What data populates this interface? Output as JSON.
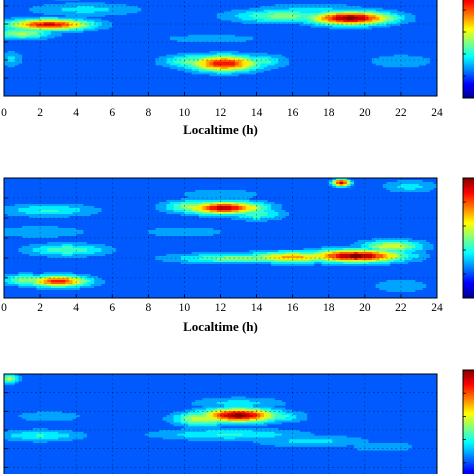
{
  "chart_data": [
    {
      "type": "heatmap",
      "panel": 1,
      "xlabel": "Localtime (h)",
      "xticks": [
        "0",
        "2",
        "4",
        "6",
        "8",
        "10",
        "12",
        "14",
        "16",
        "18",
        "20",
        "22",
        "24"
      ],
      "xlim": [
        0,
        24
      ],
      "ylim": [
        0,
        1
      ],
      "grid": true,
      "colormap": "jet",
      "colorbar": true,
      "hotspots": [
        {
          "x": 19.2,
          "y": 0.72,
          "sx": 2.2,
          "sy": 0.06,
          "v": 1.0
        },
        {
          "x": 21.0,
          "y": 0.72,
          "sx": 1.2,
          "sy": 0.05,
          "v": 0.55
        },
        {
          "x": 15.5,
          "y": 0.74,
          "sx": 2.8,
          "sy": 0.06,
          "v": 0.5
        },
        {
          "x": 17.0,
          "y": 0.8,
          "sx": 3.0,
          "sy": 0.05,
          "v": 0.35
        },
        {
          "x": 2.5,
          "y": 0.66,
          "sx": 2.2,
          "sy": 0.05,
          "v": 0.9
        },
        {
          "x": 1.0,
          "y": 0.58,
          "sx": 1.6,
          "sy": 0.05,
          "v": 0.55
        },
        {
          "x": 4.5,
          "y": 0.8,
          "sx": 3.0,
          "sy": 0.06,
          "v": 0.35
        },
        {
          "x": 3.5,
          "y": 0.97,
          "sx": 2.5,
          "sy": 0.06,
          "v": 0.5
        },
        {
          "x": 12.2,
          "y": 0.3,
          "sx": 1.8,
          "sy": 0.07,
          "v": 0.9
        },
        {
          "x": 10.5,
          "y": 0.32,
          "sx": 1.6,
          "sy": 0.06,
          "v": 0.5
        },
        {
          "x": 14.0,
          "y": 0.32,
          "sx": 1.5,
          "sy": 0.06,
          "v": 0.45
        },
        {
          "x": 11.5,
          "y": 0.53,
          "sx": 3.5,
          "sy": 0.05,
          "v": 0.28
        },
        {
          "x": 0.4,
          "y": 0.34,
          "sx": 0.6,
          "sy": 0.07,
          "v": 0.35
        },
        {
          "x": 22.0,
          "y": 0.32,
          "sx": 1.8,
          "sy": 0.06,
          "v": 0.32
        }
      ]
    },
    {
      "type": "heatmap",
      "panel": 2,
      "xlabel": "Localtime (h)",
      "xticks": [
        "0",
        "2",
        "4",
        "6",
        "8",
        "10",
        "12",
        "14",
        "16",
        "18",
        "20",
        "22",
        "24"
      ],
      "xlim": [
        0,
        24
      ],
      "ylim": [
        0,
        1
      ],
      "grid": true,
      "colormap": "jet",
      "colorbar": true,
      "hotspots": [
        {
          "x": 12.2,
          "y": 0.75,
          "sx": 2.0,
          "sy": 0.05,
          "v": 0.95
        },
        {
          "x": 10.5,
          "y": 0.76,
          "sx": 1.5,
          "sy": 0.05,
          "v": 0.55
        },
        {
          "x": 14.0,
          "y": 0.7,
          "sx": 1.4,
          "sy": 0.05,
          "v": 0.45
        },
        {
          "x": 12.0,
          "y": 0.86,
          "sx": 2.5,
          "sy": 0.05,
          "v": 0.3
        },
        {
          "x": 19.5,
          "y": 0.35,
          "sx": 2.5,
          "sy": 0.05,
          "v": 1.0
        },
        {
          "x": 16.0,
          "y": 0.34,
          "sx": 2.5,
          "sy": 0.045,
          "v": 0.7
        },
        {
          "x": 13.0,
          "y": 0.33,
          "sx": 3.5,
          "sy": 0.04,
          "v": 0.5
        },
        {
          "x": 21.5,
          "y": 0.43,
          "sx": 1.6,
          "sy": 0.05,
          "v": 0.6
        },
        {
          "x": 18.7,
          "y": 0.96,
          "sx": 0.45,
          "sy": 0.03,
          "v": 0.95
        },
        {
          "x": 22.5,
          "y": 0.93,
          "sx": 1.4,
          "sy": 0.05,
          "v": 0.35
        },
        {
          "x": 3.0,
          "y": 0.14,
          "sx": 1.6,
          "sy": 0.045,
          "v": 0.85
        },
        {
          "x": 1.2,
          "y": 0.15,
          "sx": 1.4,
          "sy": 0.045,
          "v": 0.5
        },
        {
          "x": 3.5,
          "y": 0.4,
          "sx": 2.2,
          "sy": 0.05,
          "v": 0.45
        },
        {
          "x": 2.5,
          "y": 0.73,
          "sx": 2.5,
          "sy": 0.05,
          "v": 0.4
        },
        {
          "x": 2.0,
          "y": 0.55,
          "sx": 2.5,
          "sy": 0.05,
          "v": 0.32
        },
        {
          "x": 10.0,
          "y": 0.55,
          "sx": 2.5,
          "sy": 0.05,
          "v": 0.3
        },
        {
          "x": 22.0,
          "y": 0.1,
          "sx": 1.8,
          "sy": 0.06,
          "v": 0.3
        }
      ]
    },
    {
      "type": "heatmap",
      "panel": 3,
      "xlim": [
        0,
        24
      ],
      "ylim": [
        0,
        1
      ],
      "grid": true,
      "colormap": "jet",
      "colorbar": true,
      "hotspots": [
        {
          "x": 13.0,
          "y": 0.63,
          "sx": 2.0,
          "sy": 0.06,
          "v": 1.0
        },
        {
          "x": 11.0,
          "y": 0.6,
          "sx": 1.5,
          "sy": 0.06,
          "v": 0.6
        },
        {
          "x": 15.0,
          "y": 0.62,
          "sx": 1.5,
          "sy": 0.05,
          "v": 0.45
        },
        {
          "x": 13.0,
          "y": 0.74,
          "sx": 2.5,
          "sy": 0.05,
          "v": 0.35
        },
        {
          "x": 12.5,
          "y": 0.46,
          "sx": 4.0,
          "sy": 0.05,
          "v": 0.4
        },
        {
          "x": 17.0,
          "y": 0.4,
          "sx": 3.0,
          "sy": 0.05,
          "v": 0.35
        },
        {
          "x": 21.0,
          "y": 0.35,
          "sx": 2.0,
          "sy": 0.05,
          "v": 0.3
        },
        {
          "x": 0.3,
          "y": 0.96,
          "sx": 0.5,
          "sy": 0.04,
          "v": 0.55
        },
        {
          "x": 2.0,
          "y": 0.45,
          "sx": 2.2,
          "sy": 0.05,
          "v": 0.4
        },
        {
          "x": 2.5,
          "y": 0.62,
          "sx": 2.0,
          "sy": 0.05,
          "v": 0.3
        },
        {
          "x": 5.0,
          "y": 0.3,
          "sx": 2.5,
          "sy": 0.05,
          "v": 0.25
        }
      ]
    }
  ]
}
